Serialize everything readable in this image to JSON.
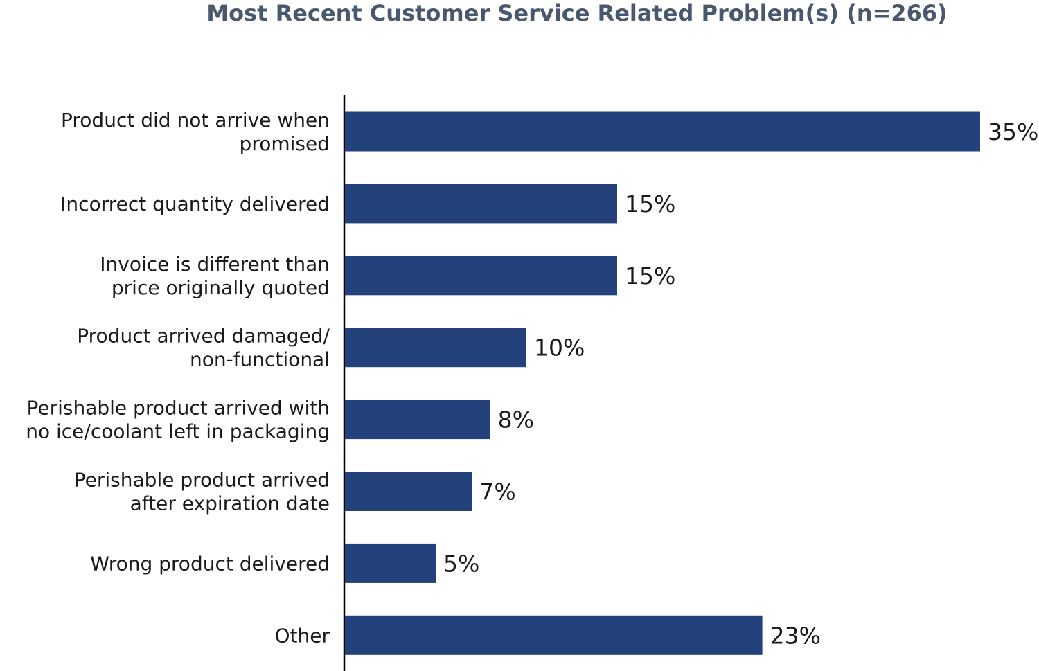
{
  "chart_data": {
    "type": "bar",
    "orientation": "horizontal",
    "title": "Most Recent Customer Service Related Problem(s) (n=266)",
    "categories": [
      [
        "Product did not arrive when",
        "promised"
      ],
      [
        "Incorrect quantity delivered"
      ],
      [
        "Invoice is different than",
        "price originally quoted"
      ],
      [
        "Product arrived damaged/",
        "non-functional"
      ],
      [
        "Perishable product arrived with",
        "no ice/coolant left in packaging"
      ],
      [
        "Perishable product arrived",
        "after expiration date"
      ],
      [
        "Wrong product delivered"
      ],
      [
        "Other"
      ]
    ],
    "values": [
      35,
      15,
      15,
      10,
      8,
      7,
      5,
      23
    ],
    "value_labels": [
      "35%",
      "15%",
      "15%",
      "10%",
      "8%",
      "7%",
      "5%",
      "23%"
    ],
    "xlim": [
      0,
      35
    ],
    "xlabel": "",
    "ylabel": "",
    "grid": false,
    "bar_color": "#23417a",
    "title_color": "#48596f"
  }
}
